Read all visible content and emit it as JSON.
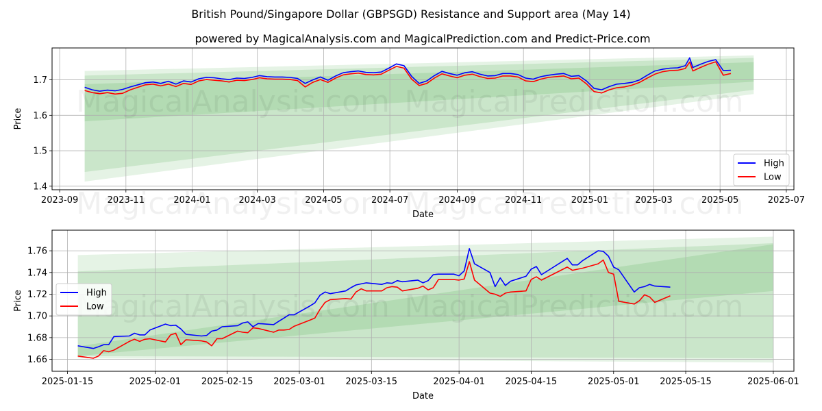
{
  "title": "British Pound/Singapore Dollar (GBPSGD) Resistance and Support area (May 14)",
  "subtitle": "powered by MagicalAnalysis.com and MagicalPrediction.com and Predict-Price.com",
  "watermark_left": "MagicalAnalysis.com",
  "watermark_right": "MagicalPrediction.com",
  "colors": {
    "high": "#0000ff",
    "low": "#ff0000",
    "band": "#2ca02c",
    "grid": "#b0b0b0"
  },
  "chart_data": [
    {
      "type": "line",
      "name": "top",
      "xlabel": "Date",
      "ylabel": "Price",
      "xlim": [
        "2023-08-25",
        "2025-07-08"
      ],
      "ylim": [
        1.39,
        1.79
      ],
      "grid": true,
      "legend": "lower right",
      "x_ticks": [
        "2023-09",
        "2023-11",
        "2024-01",
        "2024-03",
        "2024-05",
        "2024-07",
        "2024-09",
        "2024-11",
        "2025-01",
        "2025-03",
        "2025-05",
        "2025-07"
      ],
      "y_ticks": [
        1.4,
        1.5,
        1.6,
        1.7
      ],
      "bands": [
        {
          "x": [
            "2023-09-24",
            "2025-06-01"
          ],
          "upper": [
            1.725,
            1.769
          ],
          "lower": [
            1.413,
            1.66
          ],
          "opacity": 0.12
        },
        {
          "x": [
            "2023-09-24",
            "2025-06-01"
          ],
          "upper": [
            1.712,
            1.762
          ],
          "lower": [
            1.44,
            1.672
          ],
          "opacity": 0.15
        },
        {
          "x": [
            "2023-09-24",
            "2025-06-01"
          ],
          "upper": [
            1.688,
            1.75
          ],
          "lower": [
            1.583,
            1.695
          ],
          "opacity": 0.15
        }
      ],
      "series": [
        {
          "name": "High",
          "x": [
            "2023-09-24",
            "2023-10-01",
            "2023-10-08",
            "2023-10-15",
            "2023-10-22",
            "2023-10-29",
            "2023-11-05",
            "2023-11-12",
            "2023-11-19",
            "2023-11-26",
            "2023-12-03",
            "2023-12-10",
            "2023-12-17",
            "2023-12-24",
            "2023-12-31",
            "2024-01-07",
            "2024-01-14",
            "2024-01-21",
            "2024-01-28",
            "2024-02-04",
            "2024-02-11",
            "2024-02-18",
            "2024-02-25",
            "2024-03-03",
            "2024-03-10",
            "2024-03-17",
            "2024-03-24",
            "2024-03-31",
            "2024-04-07",
            "2024-04-14",
            "2024-04-21",
            "2024-04-28",
            "2024-05-05",
            "2024-05-12",
            "2024-05-19",
            "2024-05-26",
            "2024-06-02",
            "2024-06-09",
            "2024-06-16",
            "2024-06-23",
            "2024-06-30",
            "2024-07-07",
            "2024-07-14",
            "2024-07-21",
            "2024-07-28",
            "2024-08-04",
            "2024-08-11",
            "2024-08-18",
            "2024-08-25",
            "2024-09-01",
            "2024-09-08",
            "2024-09-15",
            "2024-09-22",
            "2024-09-29",
            "2024-10-06",
            "2024-10-13",
            "2024-10-20",
            "2024-10-27",
            "2024-11-03",
            "2024-11-10",
            "2024-11-17",
            "2024-11-24",
            "2024-12-01",
            "2024-12-08",
            "2024-12-15",
            "2024-12-22",
            "2024-12-29",
            "2025-01-05",
            "2025-01-12",
            "2025-01-19",
            "2025-01-26",
            "2025-02-02",
            "2025-02-09",
            "2025-02-16",
            "2025-02-23",
            "2025-03-02",
            "2025-03-09",
            "2025-03-16",
            "2025-03-23",
            "2025-03-30",
            "2025-04-03",
            "2025-04-06",
            "2025-04-13",
            "2025-04-20",
            "2025-04-27",
            "2025-05-04",
            "2025-05-11"
          ],
          "values": [
            1.679,
            1.672,
            1.668,
            1.671,
            1.669,
            1.673,
            1.68,
            1.686,
            1.692,
            1.694,
            1.69,
            1.696,
            1.688,
            1.697,
            1.694,
            1.703,
            1.707,
            1.706,
            1.703,
            1.701,
            1.705,
            1.704,
            1.707,
            1.712,
            1.709,
            1.708,
            1.708,
            1.707,
            1.704,
            1.69,
            1.7,
            1.708,
            1.699,
            1.711,
            1.72,
            1.723,
            1.725,
            1.721,
            1.72,
            1.722,
            1.733,
            1.745,
            1.74,
            1.71,
            1.69,
            1.697,
            1.712,
            1.724,
            1.718,
            1.713,
            1.72,
            1.723,
            1.716,
            1.711,
            1.712,
            1.718,
            1.718,
            1.715,
            1.705,
            1.702,
            1.709,
            1.713,
            1.716,
            1.718,
            1.71,
            1.712,
            1.697,
            1.676,
            1.672,
            1.681,
            1.688,
            1.69,
            1.693,
            1.7,
            1.713,
            1.725,
            1.73,
            1.733,
            1.734,
            1.74,
            1.762,
            1.735,
            1.744,
            1.752,
            1.757,
            1.726,
            1.727
          ]
        },
        {
          "name": "Low",
          "x": [
            "2023-09-24",
            "2023-10-01",
            "2023-10-08",
            "2023-10-15",
            "2023-10-22",
            "2023-10-29",
            "2023-11-05",
            "2023-11-12",
            "2023-11-19",
            "2023-11-26",
            "2023-12-03",
            "2023-12-10",
            "2023-12-17",
            "2023-12-24",
            "2023-12-31",
            "2024-01-07",
            "2024-01-14",
            "2024-01-21",
            "2024-01-28",
            "2024-02-04",
            "2024-02-11",
            "2024-02-18",
            "2024-02-25",
            "2024-03-03",
            "2024-03-10",
            "2024-03-17",
            "2024-03-24",
            "2024-03-31",
            "2024-04-07",
            "2024-04-14",
            "2024-04-21",
            "2024-04-28",
            "2024-05-05",
            "2024-05-12",
            "2024-05-19",
            "2024-05-26",
            "2024-06-02",
            "2024-06-09",
            "2024-06-16",
            "2024-06-23",
            "2024-06-30",
            "2024-07-07",
            "2024-07-14",
            "2024-07-21",
            "2024-07-28",
            "2024-08-04",
            "2024-08-11",
            "2024-08-18",
            "2024-08-25",
            "2024-09-01",
            "2024-09-08",
            "2024-09-15",
            "2024-09-22",
            "2024-09-29",
            "2024-10-06",
            "2024-10-13",
            "2024-10-20",
            "2024-10-27",
            "2024-11-03",
            "2024-11-10",
            "2024-11-17",
            "2024-11-24",
            "2024-12-01",
            "2024-12-08",
            "2024-12-15",
            "2024-12-22",
            "2024-12-29",
            "2025-01-05",
            "2025-01-12",
            "2025-01-19",
            "2025-01-26",
            "2025-02-02",
            "2025-02-09",
            "2025-02-16",
            "2025-02-23",
            "2025-03-02",
            "2025-03-09",
            "2025-03-16",
            "2025-03-23",
            "2025-03-30",
            "2025-04-03",
            "2025-04-06",
            "2025-04-13",
            "2025-04-20",
            "2025-04-27",
            "2025-05-04",
            "2025-05-11"
          ],
          "values": [
            1.67,
            1.664,
            1.661,
            1.664,
            1.66,
            1.662,
            1.672,
            1.679,
            1.686,
            1.688,
            1.683,
            1.688,
            1.681,
            1.69,
            1.687,
            1.697,
            1.701,
            1.699,
            1.697,
            1.694,
            1.699,
            1.698,
            1.701,
            1.706,
            1.703,
            1.702,
            1.702,
            1.701,
            1.698,
            1.68,
            1.693,
            1.701,
            1.693,
            1.705,
            1.714,
            1.717,
            1.719,
            1.715,
            1.714,
            1.716,
            1.727,
            1.738,
            1.733,
            1.702,
            1.684,
            1.69,
            1.705,
            1.717,
            1.711,
            1.706,
            1.713,
            1.716,
            1.709,
            1.704,
            1.705,
            1.711,
            1.711,
            1.708,
            1.697,
            1.695,
            1.702,
            1.707,
            1.709,
            1.711,
            1.703,
            1.705,
            1.689,
            1.667,
            1.663,
            1.672,
            1.678,
            1.68,
            1.685,
            1.693,
            1.705,
            1.716,
            1.723,
            1.726,
            1.727,
            1.732,
            1.75,
            1.725,
            1.735,
            1.744,
            1.751,
            1.713,
            1.718
          ]
        }
      ]
    },
    {
      "type": "line",
      "name": "bottom",
      "xlabel": "Date",
      "ylabel": "Price",
      "xlim": [
        "2025-01-12",
        "2025-06-05"
      ],
      "ylim": [
        1.649,
        1.779
      ],
      "grid": true,
      "legend": "center left",
      "x_ticks": [
        "2025-01-15",
        "2025-02-01",
        "2025-02-15",
        "2025-03-01",
        "2025-03-15",
        "2025-04-01",
        "2025-04-15",
        "2025-05-01",
        "2025-05-15",
        "2025-06-01"
      ],
      "y_ticks": [
        1.66,
        1.68,
        1.7,
        1.72,
        1.74,
        1.76
      ],
      "bands": [
        {
          "x": [
            "2025-01-17",
            "2025-06-01"
          ],
          "upper": [
            1.756,
            1.773
          ],
          "lower": [
            1.661,
            1.657
          ],
          "opacity": 0.12
        },
        {
          "x": [
            "2025-01-17",
            "2025-06-01"
          ],
          "upper": [
            1.741,
            1.767
          ],
          "lower": [
            1.663,
            1.661
          ],
          "opacity": 0.15
        },
        {
          "x": [
            "2025-01-17",
            "2025-06-01"
          ],
          "upper": [
            1.672,
            1.766
          ],
          "lower": [
            1.663,
            1.723
          ],
          "opacity": 0.15
        }
      ],
      "series": [
        {
          "name": "High",
          "x": [
            "2025-01-17",
            "2025-01-20",
            "2025-01-21",
            "2025-01-22",
            "2025-01-23",
            "2025-01-24",
            "2025-01-27",
            "2025-01-28",
            "2025-01-29",
            "2025-01-30",
            "2025-01-31",
            "2025-02-03",
            "2025-02-04",
            "2025-02-05",
            "2025-02-06",
            "2025-02-07",
            "2025-02-10",
            "2025-02-11",
            "2025-02-12",
            "2025-02-13",
            "2025-02-14",
            "2025-02-17",
            "2025-02-18",
            "2025-02-19",
            "2025-02-20",
            "2025-02-21",
            "2025-02-24",
            "2025-02-25",
            "2025-02-26",
            "2025-02-27",
            "2025-02-28",
            "2025-03-03",
            "2025-03-04",
            "2025-03-05",
            "2025-03-06",
            "2025-03-07",
            "2025-03-10",
            "2025-03-11",
            "2025-03-12",
            "2025-03-13",
            "2025-03-14",
            "2025-03-17",
            "2025-03-18",
            "2025-03-19",
            "2025-03-20",
            "2025-03-21",
            "2025-03-24",
            "2025-03-25",
            "2025-03-26",
            "2025-03-27",
            "2025-03-28",
            "2025-03-31",
            "2025-04-01",
            "2025-04-02",
            "2025-04-03",
            "2025-04-04",
            "2025-04-07",
            "2025-04-08",
            "2025-04-09",
            "2025-04-10",
            "2025-04-11",
            "2025-04-14",
            "2025-04-15",
            "2025-04-16",
            "2025-04-17",
            "2025-04-22",
            "2025-04-23",
            "2025-04-24",
            "2025-04-25",
            "2025-04-28",
            "2025-04-29",
            "2025-04-30",
            "2025-05-01",
            "2025-05-02",
            "2025-05-05",
            "2025-05-06",
            "2025-05-07",
            "2025-05-08",
            "2025-05-09",
            "2025-05-12"
          ],
          "values": [
            1.6725,
            1.67,
            1.6715,
            1.6735,
            1.6735,
            1.681,
            1.6815,
            1.684,
            1.6825,
            1.6825,
            1.687,
            1.6925,
            1.691,
            1.6915,
            1.688,
            1.683,
            1.6815,
            1.682,
            1.686,
            1.687,
            1.69,
            1.691,
            1.6935,
            1.6945,
            1.69,
            1.693,
            1.692,
            1.695,
            1.698,
            1.701,
            1.701,
            1.709,
            1.712,
            1.719,
            1.722,
            1.7205,
            1.723,
            1.726,
            1.7285,
            1.7295,
            1.7305,
            1.729,
            1.7305,
            1.73,
            1.7325,
            1.7315,
            1.733,
            1.7305,
            1.7325,
            1.738,
            1.7385,
            1.7385,
            1.737,
            1.7415,
            1.762,
            1.748,
            1.74,
            1.727,
            1.735,
            1.728,
            1.732,
            1.7365,
            1.743,
            1.7455,
            1.738,
            1.753,
            1.747,
            1.747,
            1.751,
            1.76,
            1.7595,
            1.755,
            1.745,
            1.7425,
            1.722,
            1.726,
            1.727,
            1.729,
            1.7275,
            1.7265
          ]
        },
        {
          "name": "Low",
          "x": [
            "2025-01-17",
            "2025-01-20",
            "2025-01-21",
            "2025-01-22",
            "2025-01-23",
            "2025-01-24",
            "2025-01-27",
            "2025-01-28",
            "2025-01-29",
            "2025-01-30",
            "2025-01-31",
            "2025-02-03",
            "2025-02-04",
            "2025-02-05",
            "2025-02-06",
            "2025-02-07",
            "2025-02-10",
            "2025-02-11",
            "2025-02-12",
            "2025-02-13",
            "2025-02-14",
            "2025-02-17",
            "2025-02-18",
            "2025-02-19",
            "2025-02-20",
            "2025-02-21",
            "2025-02-24",
            "2025-02-25",
            "2025-02-26",
            "2025-02-27",
            "2025-02-28",
            "2025-03-03",
            "2025-03-04",
            "2025-03-05",
            "2025-03-06",
            "2025-03-07",
            "2025-03-10",
            "2025-03-11",
            "2025-03-12",
            "2025-03-13",
            "2025-03-14",
            "2025-03-17",
            "2025-03-18",
            "2025-03-19",
            "2025-03-20",
            "2025-03-21",
            "2025-03-24",
            "2025-03-25",
            "2025-03-26",
            "2025-03-27",
            "2025-03-28",
            "2025-03-31",
            "2025-04-01",
            "2025-04-02",
            "2025-04-03",
            "2025-04-04",
            "2025-04-07",
            "2025-04-08",
            "2025-04-09",
            "2025-04-10",
            "2025-04-11",
            "2025-04-14",
            "2025-04-15",
            "2025-04-16",
            "2025-04-17",
            "2025-04-22",
            "2025-04-23",
            "2025-04-24",
            "2025-04-25",
            "2025-04-28",
            "2025-04-29",
            "2025-04-30",
            "2025-05-01",
            "2025-05-02",
            "2025-05-05",
            "2025-05-06",
            "2025-05-07",
            "2025-05-08",
            "2025-05-09",
            "2025-05-12"
          ],
          "values": [
            1.663,
            1.661,
            1.663,
            1.668,
            1.667,
            1.6685,
            1.6765,
            1.6785,
            1.6765,
            1.6785,
            1.679,
            1.676,
            1.6825,
            1.684,
            1.6735,
            1.678,
            1.677,
            1.676,
            1.6725,
            1.679,
            1.679,
            1.686,
            1.685,
            1.6845,
            1.689,
            1.6885,
            1.685,
            1.687,
            1.687,
            1.6875,
            1.6905,
            1.696,
            1.698,
            1.706,
            1.7125,
            1.715,
            1.716,
            1.7155,
            1.722,
            1.725,
            1.723,
            1.723,
            1.726,
            1.727,
            1.7265,
            1.723,
            1.7255,
            1.7275,
            1.724,
            1.726,
            1.7335,
            1.7335,
            1.733,
            1.734,
            1.75,
            1.733,
            1.721,
            1.72,
            1.718,
            1.721,
            1.722,
            1.723,
            1.7335,
            1.736,
            1.733,
            1.745,
            1.742,
            1.743,
            1.744,
            1.748,
            1.7515,
            1.74,
            1.7385,
            1.7135,
            1.711,
            1.714,
            1.7195,
            1.7175,
            1.7125,
            1.7185
          ]
        }
      ]
    }
  ]
}
